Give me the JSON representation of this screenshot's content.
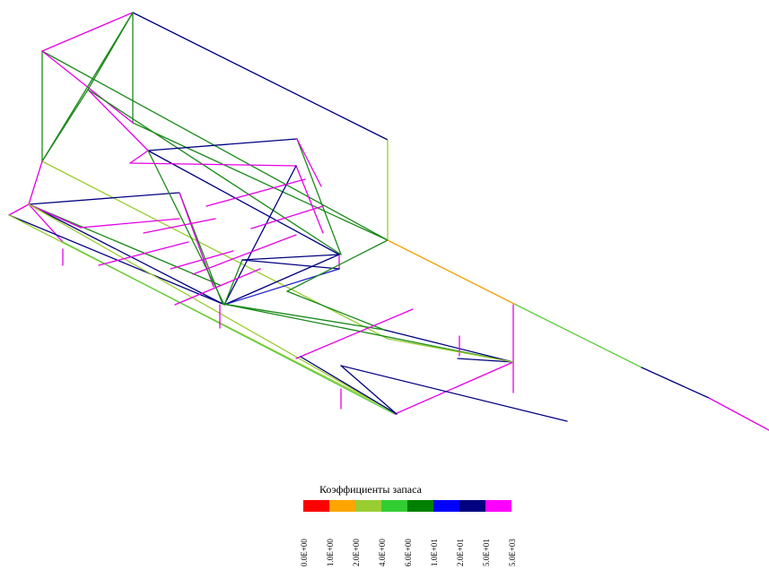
{
  "legend": {
    "title": "Коэффициенты запаса",
    "items": [
      {
        "label": "0.0E+00",
        "color": "#ff0000"
      },
      {
        "label": "1.0E+00",
        "color": "#ffa500"
      },
      {
        "label": "2.0E+00",
        "color": "#9acd32"
      },
      {
        "label": "4.0E+00",
        "color": "#32cd32"
      },
      {
        "label": "6.0E+00",
        "color": "#008000"
      },
      {
        "label": "1.0E+01",
        "color": "#0000ff"
      },
      {
        "label": "2.0E+01",
        "color": "#000080"
      },
      {
        "label": "5.0E+01",
        "color": "#ff00ff"
      },
      {
        "label": "5.0E+03",
        "color": ""
      }
    ]
  }
}
